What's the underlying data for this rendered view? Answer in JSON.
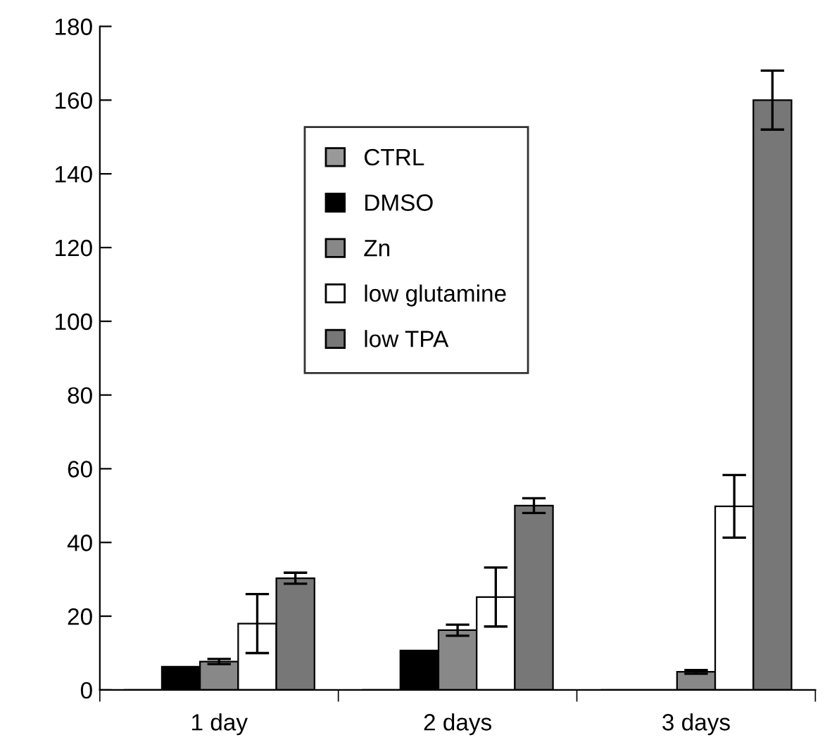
{
  "chart_data": {
    "type": "bar",
    "categories": [
      "1 day",
      "2 days",
      "3 days"
    ],
    "series": [
      {
        "name": "CTRL",
        "color": "#999999",
        "values": [
          0,
          0,
          0
        ],
        "errors": [
          null,
          null,
          null
        ]
      },
      {
        "name": "DMSO",
        "color": "#000000",
        "values": [
          6.3,
          10.7,
          0
        ],
        "errors": [
          null,
          null,
          null
        ]
      },
      {
        "name": "Zn",
        "color": "#888888",
        "values": [
          7.7,
          16.2,
          4.9
        ],
        "errors": [
          0.7,
          1.5,
          0.5
        ]
      },
      {
        "name": "low glutamine",
        "color": "#ffffff",
        "values": [
          18,
          25.2,
          49.8
        ],
        "errors": [
          8,
          8,
          8.5
        ]
      },
      {
        "name": "low TPA",
        "color": "#777777",
        "values": [
          30.3,
          50,
          160
        ],
        "errors": [
          1.5,
          2,
          8
        ]
      }
    ],
    "ylim": [
      0,
      180
    ],
    "yticks": [
      0,
      20,
      40,
      60,
      80,
      100,
      120,
      140,
      160,
      180
    ],
    "grid": false,
    "legend": "top"
  }
}
